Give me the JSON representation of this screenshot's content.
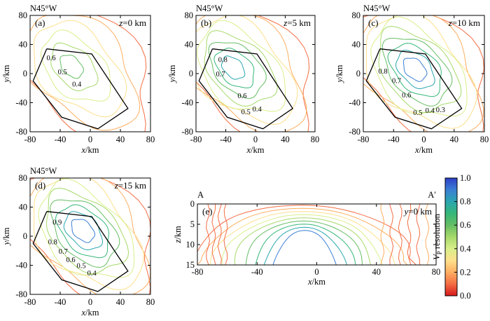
{
  "chart_data": {
    "type": "contour",
    "title": "",
    "colorbar": {
      "label": "V_P resolution",
      "label_main": "V",
      "label_sub": "P",
      "label_rest": "resolution",
      "range": [
        0.0,
        1.0
      ],
      "ticks": [
        "0.0",
        "0.2",
        "0.4",
        "0.6",
        "0.8",
        "1.0"
      ],
      "colors": [
        "#d7191c",
        "#f46d43",
        "#fdae61",
        "#fee08b",
        "#d9ef8b",
        "#a6d96a",
        "#66bd63",
        "#35b779",
        "#2aa6b0",
        "#3b7fd4",
        "#2c3fc7"
      ]
    },
    "panels": [
      {
        "id": "a",
        "label": "(a)",
        "depth_text": "z=0 km",
        "depth_var": "z",
        "depth_val": "=0 km",
        "orientation": "N45°W",
        "xlabel": "x/km",
        "ylabel": "y/km",
        "xlim": [
          -80,
          80
        ],
        "ylim": [
          -80,
          80
        ],
        "xticks": [
          "-80",
          "-40",
          "0",
          "40",
          "80"
        ],
        "yticks": [
          "80",
          "40",
          "0",
          "-40",
          "-80"
        ],
        "contour_labels": [
          {
            "text": "0.6",
            "x": -52,
            "y": 22
          },
          {
            "text": "0.5",
            "x": -37,
            "y": 3
          },
          {
            "text": "0.4",
            "x": -18,
            "y": -14
          }
        ],
        "max_level": 0.6,
        "peak": [
          -25,
          10
        ],
        "polygon": [
          [
            -58,
            34
          ],
          [
            2,
            27
          ],
          [
            50,
            -48
          ],
          [
            10,
            -76
          ],
          [
            -38,
            -60
          ],
          [
            -76,
            -10
          ],
          [
            -58,
            34
          ]
        ]
      },
      {
        "id": "b",
        "label": "(b)",
        "depth_text": "z=5 km",
        "depth_var": "z",
        "depth_val": "=5 km",
        "orientation": "N45°W",
        "xlabel": "x/km",
        "ylabel": "y/km",
        "xlim": [
          -80,
          80
        ],
        "ylim": [
          -80,
          80
        ],
        "xticks": [
          "-80",
          "-40",
          "0",
          "40",
          "80"
        ],
        "yticks": [
          "80",
          "40",
          "0",
          "-40",
          "-80"
        ],
        "contour_labels": [
          {
            "text": "0.8",
            "x": -44,
            "y": 20
          },
          {
            "text": "0.7",
            "x": -47,
            "y": 0
          },
          {
            "text": "0.6",
            "x": -18,
            "y": -30
          },
          {
            "text": "0.5",
            "x": -13,
            "y": -52
          },
          {
            "text": "0.4",
            "x": 2,
            "y": -48
          }
        ],
        "max_level": 0.8,
        "peak": [
          -30,
          8
        ],
        "polygon": [
          [
            -58,
            34
          ],
          [
            2,
            27
          ],
          [
            50,
            -48
          ],
          [
            10,
            -76
          ],
          [
            -38,
            -60
          ],
          [
            -76,
            -10
          ],
          [
            -58,
            34
          ]
        ]
      },
      {
        "id": "c",
        "label": "(c)",
        "depth_text": "z=10 km",
        "depth_var": "z",
        "depth_val": "=10 km",
        "orientation": "N45°W",
        "xlabel": "x/km",
        "ylabel": "y/km",
        "xlim": [
          -80,
          80
        ],
        "ylim": [
          -80,
          80
        ],
        "xticks": [
          "-80",
          "-40",
          "0",
          "40",
          "80"
        ],
        "yticks": [
          "80",
          "40",
          "0",
          "-40",
          "-80"
        ],
        "contour_labels": [
          {
            "text": "0.8",
            "x": -54,
            "y": 4
          },
          {
            "text": "0.7",
            "x": -36,
            "y": -9
          },
          {
            "text": "0.6",
            "x": -23,
            "y": -29
          },
          {
            "text": "0.5",
            "x": -8,
            "y": -53
          },
          {
            "text": "0.4",
            "x": 8,
            "y": -50
          },
          {
            "text": "0.3",
            "x": 22,
            "y": -49
          }
        ],
        "max_level": 0.9,
        "peak": [
          -12,
          6
        ],
        "polygon": [
          [
            -58,
            34
          ],
          [
            2,
            27
          ],
          [
            50,
            -48
          ],
          [
            10,
            -76
          ],
          [
            -38,
            -60
          ],
          [
            -76,
            -10
          ],
          [
            -58,
            34
          ]
        ]
      },
      {
        "id": "d",
        "label": "(d)",
        "depth_text": "z=15 km",
        "depth_var": "z",
        "depth_val": "=15 km",
        "orientation": "N45°W",
        "xlabel": "x/km",
        "ylabel": "y/km",
        "xlim": [
          -80,
          80
        ],
        "ylim": [
          -80,
          80
        ],
        "xticks": [
          "-80",
          "-40",
          "0",
          "40",
          "80"
        ],
        "yticks": [
          "80",
          "40",
          "0",
          "-40",
          "-80"
        ],
        "contour_labels": [
          {
            "text": "0.9",
            "x": -44,
            "y": 20
          },
          {
            "text": "0.8",
            "x": -50,
            "y": -7
          },
          {
            "text": "0.7",
            "x": -36,
            "y": -20
          },
          {
            "text": "0.6",
            "x": -26,
            "y": -32
          },
          {
            "text": "0.5",
            "x": -12,
            "y": -40
          },
          {
            "text": "0.4",
            "x": 2,
            "y": -50
          }
        ],
        "max_level": 0.95,
        "peak": [
          -10,
          8
        ],
        "polygon": [
          [
            -58,
            34
          ],
          [
            2,
            27
          ],
          [
            50,
            -48
          ],
          [
            10,
            -76
          ],
          [
            -38,
            -60
          ],
          [
            -76,
            -10
          ],
          [
            -58,
            34
          ]
        ]
      },
      {
        "id": "e",
        "label": "(e)",
        "depth_text": "y=0 km",
        "depth_var": "y",
        "depth_val": "=0 km",
        "section_start": "A",
        "section_end": "A′",
        "xlabel": "x/km",
        "ylabel": "z/km",
        "xlim": [
          -80,
          80
        ],
        "ylim": [
          15,
          0
        ],
        "xticks": [
          "-80",
          "-40",
          "0",
          "40",
          "80"
        ],
        "yticks": [
          "0",
          "5",
          "10",
          "15"
        ],
        "max_level": 0.9
      }
    ]
  }
}
